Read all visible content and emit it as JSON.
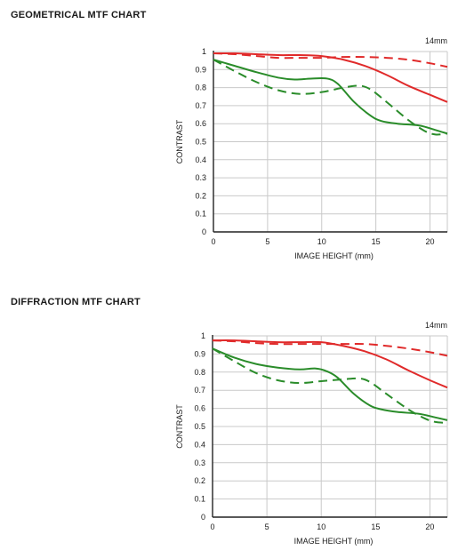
{
  "charts": [
    {
      "heading": "GEOMETRICAL MTF CHART"
    },
    {
      "heading": "DIFFRACTION MTF CHART"
    }
  ],
  "colors": {
    "red": "#e02a2a",
    "green": "#2a8c2a",
    "grid": "#c9c9c9",
    "axis": "#222222"
  },
  "chart_data": [
    {
      "type": "line",
      "title": "GEOMETRICAL MTF CHART",
      "annotation": "14mm",
      "xlabel": "IMAGE HEIGHT (mm)",
      "ylabel": "CONTRAST",
      "xlim": [
        0,
        21.6
      ],
      "ylim": [
        0,
        1
      ],
      "xticks": [
        0,
        5,
        10,
        15,
        20
      ],
      "yticks": [
        0,
        0.1,
        0.2,
        0.3,
        0.4,
        0.5,
        0.6,
        0.7,
        0.8,
        0.9,
        1
      ],
      "ytick_labels": [
        "0",
        "0.1",
        "0.2",
        "0.3",
        "0.4",
        "0.5",
        "0.6",
        "0.7",
        "0.8",
        "0.9",
        "1"
      ],
      "grid": true,
      "series": [
        {
          "color": "red",
          "dash": false,
          "x": [
            0,
            2,
            4,
            6,
            8,
            10,
            12,
            14,
            16,
            18,
            20,
            21.6
          ],
          "y": [
            0.99,
            0.99,
            0.985,
            0.98,
            0.98,
            0.975,
            0.955,
            0.92,
            0.87,
            0.81,
            0.76,
            0.72
          ]
        },
        {
          "color": "red",
          "dash": true,
          "x": [
            0,
            2,
            4,
            6,
            8,
            10,
            12,
            14,
            16,
            18,
            20,
            21.6
          ],
          "y": [
            0.99,
            0.985,
            0.975,
            0.965,
            0.965,
            0.965,
            0.97,
            0.97,
            0.965,
            0.955,
            0.935,
            0.915
          ]
        },
        {
          "color": "green",
          "dash": false,
          "x": [
            0,
            2,
            4,
            6,
            7.5,
            9,
            10.5,
            11.5,
            13,
            14.5,
            15.5,
            17,
            19,
            20.5,
            21.6
          ],
          "y": [
            0.955,
            0.92,
            0.885,
            0.855,
            0.845,
            0.85,
            0.85,
            0.82,
            0.72,
            0.645,
            0.615,
            0.6,
            0.59,
            0.565,
            0.545
          ]
        },
        {
          "color": "green",
          "dash": true,
          "x": [
            0,
            2,
            4,
            6,
            8,
            10,
            12,
            13.5,
            14.5,
            16,
            18,
            19.5,
            20.5,
            21.6
          ],
          "y": [
            0.955,
            0.89,
            0.83,
            0.785,
            0.765,
            0.775,
            0.8,
            0.81,
            0.79,
            0.72,
            0.62,
            0.56,
            0.54,
            0.545
          ]
        }
      ]
    },
    {
      "type": "line",
      "title": "DIFFRACTION MTF CHART",
      "annotation": "14mm",
      "xlabel": "IMAGE HEIGHT (mm)",
      "ylabel": "CONTRAST",
      "xlim": [
        0,
        21.6
      ],
      "ylim": [
        0,
        1
      ],
      "xticks": [
        0,
        5,
        10,
        15,
        20
      ],
      "yticks": [
        0,
        0.1,
        0.2,
        0.3,
        0.4,
        0.5,
        0.6,
        0.7,
        0.8,
        0.9,
        1
      ],
      "ytick_labels": [
        "0",
        "0.1",
        "0.2",
        "0.3",
        "0.4",
        "0.5",
        "0.6",
        "0.7",
        "0.8",
        "0.9",
        "1"
      ],
      "grid": true,
      "series": [
        {
          "color": "red",
          "dash": false,
          "x": [
            0,
            2,
            4,
            6,
            8,
            10,
            12,
            14,
            16,
            18,
            20,
            21.6
          ],
          "y": [
            0.975,
            0.975,
            0.97,
            0.965,
            0.965,
            0.965,
            0.945,
            0.915,
            0.87,
            0.81,
            0.755,
            0.715
          ]
        },
        {
          "color": "red",
          "dash": true,
          "x": [
            0,
            2,
            4,
            6,
            8,
            10,
            12,
            14,
            16,
            18,
            20,
            21.6
          ],
          "y": [
            0.975,
            0.97,
            0.96,
            0.955,
            0.955,
            0.955,
            0.955,
            0.955,
            0.945,
            0.93,
            0.91,
            0.89
          ]
        },
        {
          "color": "green",
          "dash": false,
          "x": [
            0,
            2,
            4,
            6,
            8,
            9.5,
            10.5,
            11.5,
            13,
            14.5,
            15.5,
            17,
            19,
            20.5,
            21.6
          ],
          "y": [
            0.93,
            0.88,
            0.845,
            0.825,
            0.815,
            0.82,
            0.805,
            0.77,
            0.68,
            0.615,
            0.595,
            0.58,
            0.57,
            0.55,
            0.535
          ]
        },
        {
          "color": "green",
          "dash": true,
          "x": [
            0,
            2,
            4,
            6,
            8,
            10,
            12,
            13.5,
            14.5,
            16,
            18,
            19.5,
            20.5,
            21.6
          ],
          "y": [
            0.93,
            0.86,
            0.795,
            0.755,
            0.74,
            0.75,
            0.76,
            0.765,
            0.745,
            0.68,
            0.595,
            0.545,
            0.525,
            0.52
          ]
        }
      ]
    }
  ]
}
